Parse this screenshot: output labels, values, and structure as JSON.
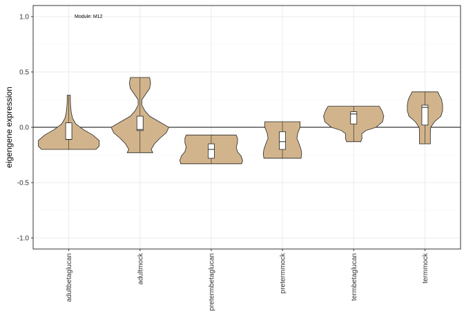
{
  "chart_data": {
    "type": "violin",
    "title": "",
    "xlabel": "",
    "ylabel": "eigengene expression",
    "annotation": "Module: M12",
    "ylim": [
      -1.1,
      1.1
    ],
    "yticks": [
      -1.0,
      -0.5,
      0.0,
      0.5,
      1.0
    ],
    "ytick_labels": [
      "-1.0",
      "-0.5",
      "0.0",
      "0.5",
      "1.0"
    ],
    "hline": 0,
    "grid": true,
    "legend": "none",
    "fill_color": "#d2b48c",
    "categories": [
      "adultbetaglucan",
      "adultmock",
      "pretermbetaglucan",
      "pretermmock",
      "termbetaglucan",
      "termmock"
    ],
    "violins": [
      {
        "category": "adultbetaglucan",
        "min": -0.2,
        "max": 0.29,
        "profile": [
          [
            -0.2,
            0.85
          ],
          [
            -0.17,
            0.95
          ],
          [
            -0.12,
            0.95
          ],
          [
            -0.07,
            0.75
          ],
          [
            -0.02,
            0.45
          ],
          [
            0.03,
            0.22
          ],
          [
            0.08,
            0.12
          ],
          [
            0.13,
            0.08
          ],
          [
            0.18,
            0.06
          ],
          [
            0.23,
            0.05
          ],
          [
            0.26,
            0.05
          ],
          [
            0.29,
            0.05
          ]
        ],
        "box": {
          "q1": -0.11,
          "median": -0.11,
          "q3": 0.04
        }
      },
      {
        "category": "adultmock",
        "min": -0.23,
        "max": 0.45,
        "profile": [
          [
            -0.23,
            0.4
          ],
          [
            -0.2,
            0.35
          ],
          [
            -0.15,
            0.45
          ],
          [
            -0.1,
            0.62
          ],
          [
            -0.05,
            0.82
          ],
          [
            0.0,
            0.9
          ],
          [
            0.05,
            0.6
          ],
          [
            0.1,
            0.3
          ],
          [
            0.15,
            0.15
          ],
          [
            0.2,
            0.06
          ],
          [
            0.25,
            0.06
          ],
          [
            0.3,
            0.18
          ],
          [
            0.35,
            0.3
          ],
          [
            0.4,
            0.33
          ],
          [
            0.45,
            0.3
          ]
        ],
        "box": {
          "q1": -0.03,
          "median": -0.02,
          "q3": 0.1
        }
      },
      {
        "category": "pretermbetaglucan",
        "min": -0.33,
        "max": -0.07,
        "profile": [
          [
            -0.33,
            0.95
          ],
          [
            -0.3,
            0.98
          ],
          [
            -0.26,
            0.93
          ],
          [
            -0.22,
            0.82
          ],
          [
            -0.18,
            0.78
          ],
          [
            -0.14,
            0.82
          ],
          [
            -0.1,
            0.82
          ],
          [
            -0.07,
            0.78
          ]
        ],
        "box": {
          "q1": -0.28,
          "median": -0.2,
          "q3": -0.15
        }
      },
      {
        "category": "pretermmock",
        "min": -0.28,
        "max": 0.05,
        "profile": [
          [
            -0.28,
            0.58
          ],
          [
            -0.24,
            0.6
          ],
          [
            -0.2,
            0.58
          ],
          [
            -0.15,
            0.52
          ],
          [
            -0.1,
            0.45
          ],
          [
            -0.05,
            0.48
          ],
          [
            0.0,
            0.55
          ],
          [
            0.05,
            0.55
          ]
        ],
        "box": {
          "q1": -0.2,
          "median": -0.13,
          "q3": -0.04
        }
      },
      {
        "category": "termbetaglucan",
        "min": -0.13,
        "max": 0.19,
        "profile": [
          [
            -0.13,
            0.22
          ],
          [
            -0.1,
            0.26
          ],
          [
            -0.06,
            0.25
          ],
          [
            -0.03,
            0.38
          ],
          [
            0.0,
            0.7
          ],
          [
            0.05,
            0.9
          ],
          [
            0.1,
            0.94
          ],
          [
            0.15,
            0.88
          ],
          [
            0.19,
            0.8
          ]
        ],
        "box": {
          "q1": 0.03,
          "median": 0.12,
          "q3": 0.14
        }
      },
      {
        "category": "termmock",
        "min": -0.15,
        "max": 0.32,
        "profile": [
          [
            -0.15,
            0.17
          ],
          [
            -0.1,
            0.17
          ],
          [
            -0.05,
            0.17
          ],
          [
            0.0,
            0.18
          ],
          [
            0.05,
            0.3
          ],
          [
            0.1,
            0.5
          ],
          [
            0.15,
            0.55
          ],
          [
            0.2,
            0.55
          ],
          [
            0.25,
            0.52
          ],
          [
            0.29,
            0.45
          ],
          [
            0.32,
            0.4
          ]
        ],
        "box": {
          "q1": 0.02,
          "median": 0.18,
          "q3": 0.2
        }
      }
    ]
  }
}
